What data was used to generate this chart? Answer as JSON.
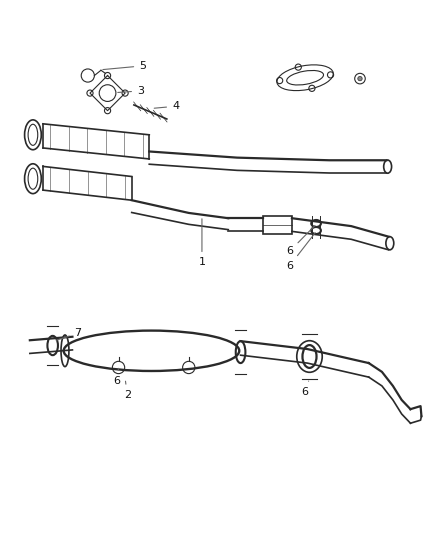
{
  "title": "",
  "background_color": "#ffffff",
  "line_color": "#2a2a2a",
  "label_color": "#222222",
  "fig_width": 4.39,
  "fig_height": 5.33,
  "dpi": 100
}
